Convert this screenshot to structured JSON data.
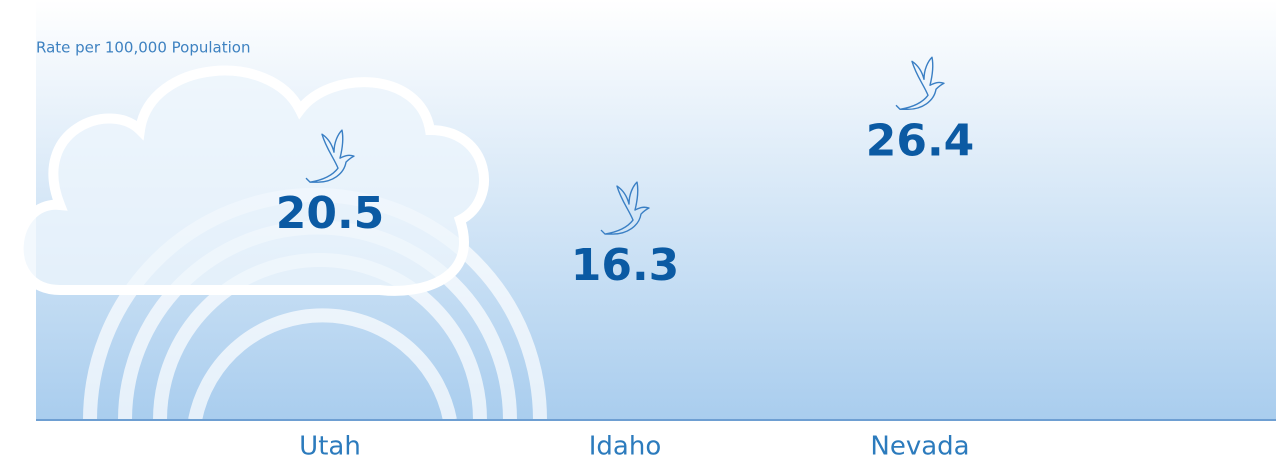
{
  "chart_data": {
    "type": "pictograph",
    "y_label": "Rate per 100,000 Population",
    "categories": [
      "Utah",
      "Idaho",
      "Nevada"
    ],
    "values": [
      20.5,
      16.3,
      26.4
    ],
    "color": "#0b5aa3",
    "ylim": [
      4,
      38
    ]
  }
}
